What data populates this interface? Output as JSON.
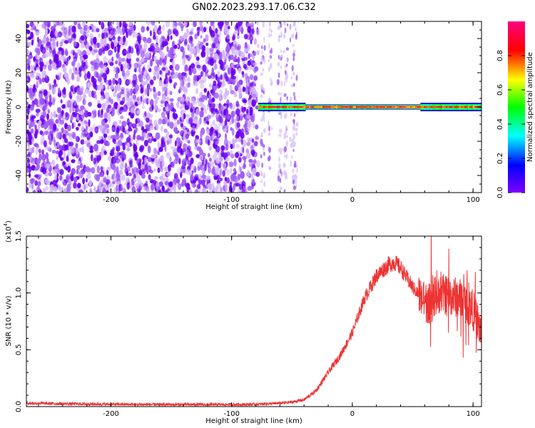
{
  "title": "GN02.2023.293.17.06.C32",
  "chart_data": [
    {
      "type": "heatmap",
      "xlabel": "Height of straight line (km)",
      "ylabel": "Frequency (Hz)",
      "xlim": [
        -270,
        107
      ],
      "ylim": [
        -50,
        50
      ],
      "x_ticks": [
        -200,
        -100,
        0,
        100
      ],
      "x_tick_labels": [
        "-200",
        "-100",
        "0",
        "100"
      ],
      "y_ticks": [
        40,
        20,
        0,
        -20,
        -40
      ],
      "y_tick_labels": [
        "40",
        "20",
        "0",
        "-20",
        "-40"
      ],
      "colorbar": {
        "label": "Normalized spectral amplitude",
        "range": [
          0,
          1
        ],
        "ticks": [
          0.0,
          0.2,
          0.4,
          0.6,
          0.8
        ],
        "tick_labels": [
          "0.0",
          "0.2",
          "0.4",
          "0.6",
          "0.8"
        ],
        "colormap": [
          "#7f00ff",
          "#0000ff",
          "#00ffff",
          "#00ff00",
          "#ffff00",
          "#ff0000",
          "#ff0080"
        ]
      },
      "regions": [
        {
          "x_range": [
            -270,
            -78
          ],
          "description": "broadband noise, amplitude ~0.1-0.3 across all frequencies"
        },
        {
          "x_range": [
            -78,
            -42
          ],
          "description": "sparse noise streaks"
        },
        {
          "x_range": [
            -78,
            107
          ],
          "description": "narrow-band line near 0 Hz, amplitude ~0.6-1.0"
        }
      ],
      "line_frequency_hz": 0,
      "grid": false
    },
    {
      "type": "line",
      "xlabel": "Height of straight line (km)",
      "ylabel": "SNR (10 * v/v)",
      "y_scale_label": "(x10",
      "y_scale_exp": "4",
      "y_scale_close": ")",
      "xlim": [
        -270,
        107
      ],
      "ylim": [
        0,
        1.5
      ],
      "x_ticks": [
        -200,
        -100,
        0,
        100
      ],
      "x_tick_labels": [
        "-200",
        "-100",
        "0",
        "100"
      ],
      "y_ticks": [
        0.0,
        0.5,
        1.0,
        1.5
      ],
      "y_tick_labels": [
        "0.0",
        "0.5",
        "1.0",
        "1.5"
      ],
      "series": [
        {
          "color": "#ee3333",
          "x": [
            -270,
            -240,
            -200,
            -150,
            -100,
            -80,
            -60,
            -50,
            -40,
            -30,
            -20,
            -10,
            0,
            10,
            20,
            30,
            35,
            40,
            50,
            60,
            65,
            70,
            80,
            90,
            100,
            107
          ],
          "y": [
            0.03,
            0.025,
            0.02,
            0.018,
            0.018,
            0.02,
            0.03,
            0.04,
            0.06,
            0.14,
            0.3,
            0.45,
            0.65,
            0.95,
            1.15,
            1.25,
            1.27,
            1.22,
            1.05,
            0.92,
            0.9,
            1.0,
            0.98,
            0.95,
            0.85,
            0.65
          ]
        }
      ],
      "grid": false
    }
  ]
}
